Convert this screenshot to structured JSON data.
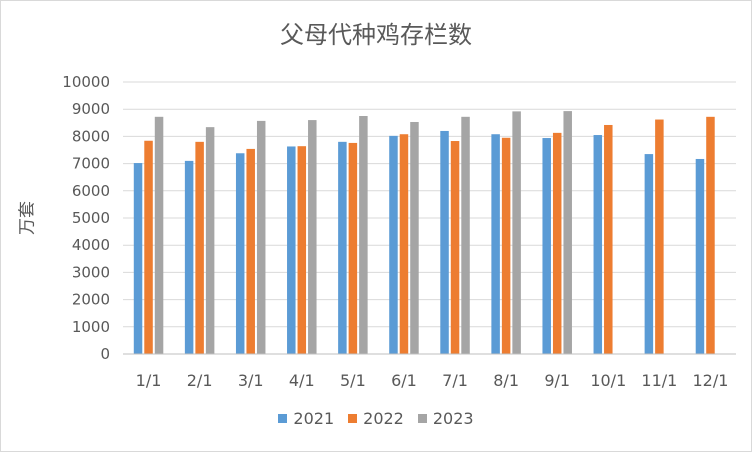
{
  "chart_data": {
    "type": "bar",
    "title": "父母代种鸡存栏数",
    "xlabel": "",
    "ylabel": "万套",
    "ylim": [
      0,
      10000
    ],
    "yticks": [
      0,
      1000,
      2000,
      3000,
      4000,
      5000,
      6000,
      7000,
      8000,
      9000,
      10000
    ],
    "grid": true,
    "legend_position": "bottom",
    "categories": [
      "1/1",
      "2/1",
      "3/1",
      "4/1",
      "5/1",
      "6/1",
      "7/1",
      "8/1",
      "9/1",
      "10/1",
      "11/1",
      "12/1"
    ],
    "series": [
      {
        "name": "2021",
        "color": "#5b9bd5",
        "values": [
          7020,
          7100,
          7380,
          7630,
          7800,
          8020,
          8200,
          8080,
          7940,
          8050,
          7350,
          7170
        ]
      },
      {
        "name": "2022",
        "color": "#ed7d31",
        "values": [
          7840,
          7800,
          7540,
          7640,
          7760,
          8080,
          7830,
          7950,
          8130,
          8420,
          8620,
          8720
        ]
      },
      {
        "name": "2023",
        "color": "#a5a5a5",
        "values": [
          8720,
          8340,
          8570,
          8600,
          8750,
          8530,
          8720,
          8920,
          8930,
          null,
          null,
          null
        ]
      }
    ]
  }
}
